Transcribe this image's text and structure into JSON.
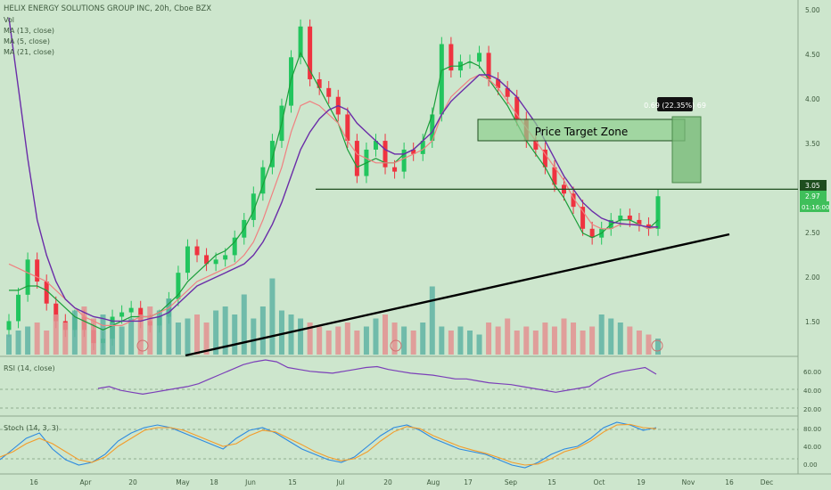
{
  "header": {
    "title": "HELIX ENERGY SOLUTIONS GROUP INC, 20h, Cboe BZX",
    "legend": [
      "Vol",
      "MA (13, close)",
      "MA (5, close)",
      "MA (21, close)"
    ]
  },
  "price_axis": {
    "ticks": [
      "5.00",
      "4.50",
      "4.00",
      "3.50",
      "3.00",
      "2.50",
      "2.00",
      "1.50"
    ],
    "labels": {
      "level": "3.05",
      "last": "2.97",
      "countdown": "01:16:00"
    }
  },
  "time_axis": {
    "ticks": [
      "16",
      "Apr",
      "20",
      "May",
      "18",
      "Jun",
      "15",
      "Jul",
      "20",
      "Aug",
      "17",
      "Sep",
      "15",
      "Oct",
      "19",
      "Nov",
      "16",
      "Dec"
    ]
  },
  "annotations": {
    "zone_label": "Price Target Zone",
    "measure_label": "0.69 (22.35%) 69"
  },
  "rsi": {
    "label": "RSI (14, close)",
    "ticks": [
      "60.00",
      "40.00",
      "20.00"
    ]
  },
  "stoch": {
    "label": "Stoch (14, 3, 3)",
    "ticks": [
      "80.00",
      "40.00",
      "0.00"
    ]
  },
  "colors": {
    "background": "#cde6cd",
    "up": "#22c55e",
    "down": "#ef3340",
    "ma13": "#1b9e3a",
    "ma5": "#f08080",
    "ma21": "#6a2ca8",
    "volume_up": "#5fb3a3",
    "volume_down": "#e39191",
    "stoch_k": "#2d8ae0",
    "stoch_d": "#f39c2a"
  },
  "chart_data": {
    "type": "candlestick",
    "symbol": "HELIX ENERGY SOLUTIONS GROUP INC",
    "interval": "20h",
    "ylim": [
      1.2,
      5.1
    ],
    "close": [
      1.55,
      1.85,
      2.25,
      2.0,
      1.75,
      1.55,
      1.45,
      1.6,
      1.45,
      1.3,
      1.35,
      1.6,
      1.65,
      1.7,
      1.55,
      1.5,
      1.6,
      1.8,
      2.1,
      2.4,
      2.3,
      2.2,
      2.25,
      2.3,
      2.5,
      2.7,
      3.0,
      3.3,
      3.6,
      4.0,
      4.55,
      4.9,
      4.3,
      4.2,
      4.1,
      3.9,
      3.6,
      3.2,
      3.5,
      3.6,
      3.3,
      3.25,
      3.5,
      3.45,
      3.6,
      3.9,
      4.7,
      4.4,
      4.5,
      4.5,
      4.6,
      4.3,
      4.2,
      4.1,
      3.85,
      3.6,
      3.5,
      3.3,
      3.1,
      3.0,
      2.85,
      2.6,
      2.5,
      2.6,
      2.7,
      2.75,
      2.7,
      2.65,
      2.6,
      2.97
    ],
    "series": [
      {
        "name": "MA (13, close)",
        "values": [
          1.9,
          1.9,
          1.95,
          1.95,
          1.9,
          1.8,
          1.7,
          1.6,
          1.55,
          1.5,
          1.45,
          1.5,
          1.55,
          1.6,
          1.6,
          1.6,
          1.65,
          1.75,
          1.85,
          2.0,
          2.1,
          2.2,
          2.3,
          2.35,
          2.45,
          2.6,
          2.8,
          3.1,
          3.4,
          3.8,
          4.3,
          4.6,
          4.4,
          4.2,
          4.0,
          3.8,
          3.5,
          3.3,
          3.35,
          3.4,
          3.35,
          3.35,
          3.45,
          3.5,
          3.6,
          3.9,
          4.4,
          4.45,
          4.45,
          4.5,
          4.45,
          4.3,
          4.15,
          4.0,
          3.8,
          3.6,
          3.45,
          3.3,
          3.1,
          2.95,
          2.75,
          2.55,
          2.5,
          2.55,
          2.65,
          2.7,
          2.7,
          2.65,
          2.6,
          2.7
        ]
      },
      {
        "name": "MA (5, close)",
        "values": [
          2.2,
          2.15,
          2.1,
          2.05,
          2.0,
          1.9,
          1.8,
          1.7,
          1.6,
          1.55,
          1.5,
          1.5,
          1.5,
          1.55,
          1.6,
          1.6,
          1.65,
          1.7,
          1.8,
          1.9,
          2.0,
          2.05,
          2.1,
          2.15,
          2.2,
          2.3,
          2.45,
          2.7,
          3.0,
          3.3,
          3.7,
          4.0,
          4.05,
          4.0,
          3.9,
          3.8,
          3.6,
          3.45,
          3.4,
          3.35,
          3.35,
          3.35,
          3.4,
          3.45,
          3.5,
          3.6,
          3.9,
          4.1,
          4.2,
          4.3,
          4.35,
          4.3,
          4.2,
          4.05,
          3.9,
          3.75,
          3.6,
          3.45,
          3.3,
          3.15,
          2.95,
          2.8,
          2.65,
          2.6,
          2.6,
          2.65,
          2.65,
          2.65,
          2.6,
          2.62
        ]
      },
      {
        "name": "MA (21, close)",
        "values": [
          5.0,
          4.2,
          3.4,
          2.7,
          2.3,
          2.0,
          1.8,
          1.7,
          1.65,
          1.6,
          1.58,
          1.55,
          1.55,
          1.55,
          1.55,
          1.58,
          1.6,
          1.65,
          1.75,
          1.85,
          1.95,
          2.0,
          2.05,
          2.1,
          2.15,
          2.2,
          2.3,
          2.45,
          2.65,
          2.9,
          3.2,
          3.5,
          3.7,
          3.85,
          3.95,
          4.0,
          3.95,
          3.8,
          3.7,
          3.6,
          3.5,
          3.45,
          3.45,
          3.5,
          3.6,
          3.7,
          3.9,
          4.05,
          4.15,
          4.25,
          4.35,
          4.35,
          4.3,
          4.2,
          4.1,
          3.95,
          3.8,
          3.6,
          3.4,
          3.2,
          3.05,
          2.9,
          2.8,
          2.72,
          2.68,
          2.66,
          2.65,
          2.64,
          2.62,
          2.62
        ]
      }
    ],
    "volume": [
      0.25,
      0.3,
      0.35,
      0.4,
      0.3,
      0.5,
      0.4,
      0.55,
      0.6,
      0.45,
      0.5,
      0.4,
      0.35,
      0.45,
      0.5,
      0.6,
      0.55,
      0.7,
      0.4,
      0.45,
      0.5,
      0.4,
      0.55,
      0.6,
      0.5,
      0.75,
      0.45,
      0.6,
      0.95,
      0.55,
      0.5,
      0.45,
      0.4,
      0.35,
      0.3,
      0.35,
      0.4,
      0.3,
      0.35,
      0.45,
      0.5,
      0.4,
      0.35,
      0.3,
      0.4,
      0.85,
      0.35,
      0.3,
      0.35,
      0.3,
      0.25,
      0.4,
      0.35,
      0.45,
      0.3,
      0.35,
      0.3,
      0.4,
      0.35,
      0.45,
      0.4,
      0.3,
      0.35,
      0.5,
      0.45,
      0.4,
      0.35,
      0.3,
      0.25,
      0.2
    ],
    "rsi": [
      40,
      42,
      38,
      36,
      34,
      36,
      38,
      40,
      42,
      45,
      50,
      55,
      60,
      65,
      68,
      70,
      68,
      62,
      60,
      58,
      57,
      56,
      58,
      60,
      62,
      63,
      60,
      58,
      56,
      55,
      54,
      52,
      50,
      50,
      48,
      46,
      45,
      44,
      42,
      40,
      38,
      36,
      38,
      40,
      42,
      50,
      55,
      58,
      60,
      62,
      55
    ],
    "stoch_k": [
      20,
      40,
      60,
      70,
      40,
      20,
      10,
      15,
      30,
      55,
      70,
      80,
      85,
      80,
      70,
      60,
      50,
      40,
      60,
      75,
      80,
      70,
      55,
      40,
      30,
      20,
      15,
      25,
      45,
      65,
      80,
      85,
      75,
      60,
      50,
      40,
      35,
      30,
      20,
      10,
      5,
      15,
      30,
      40,
      45,
      60,
      80,
      90,
      85,
      75,
      80
    ],
    "stoch_d": [
      25,
      35,
      50,
      60,
      50,
      35,
      20,
      15,
      25,
      45,
      60,
      75,
      80,
      80,
      75,
      65,
      55,
      45,
      50,
      65,
      75,
      72,
      60,
      48,
      35,
      25,
      18,
      22,
      35,
      55,
      72,
      82,
      78,
      65,
      55,
      45,
      38,
      32,
      24,
      15,
      10,
      12,
      22,
      35,
      42,
      55,
      72,
      85,
      86,
      80,
      78
    ],
    "trendline": {
      "from": [
        2,
        1.2
      ],
      "to": [
        69,
        2.55
      ]
    },
    "horizontal_level": 3.05,
    "target_zone": [
      3.57,
      3.78
    ],
    "measure": {
      "change": 0.69,
      "percent": 22.35,
      "bars": 69
    }
  }
}
